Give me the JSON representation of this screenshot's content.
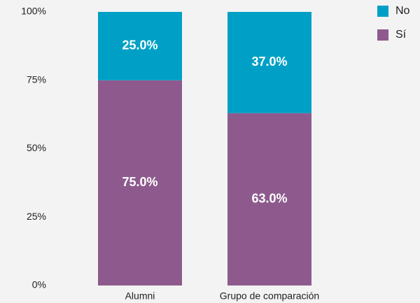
{
  "chart_data": {
    "type": "stacked-bar",
    "categories": [
      "Alumni",
      "Grupo de comparación"
    ],
    "series": [
      {
        "name": "No",
        "color": "#00a0c6",
        "values": [
          25,
          37
        ],
        "value_labels": [
          "25.0%",
          "37.0%"
        ]
      },
      {
        "name": "Sí",
        "color": "#8e5a8e",
        "values": [
          75,
          63
        ],
        "value_labels": [
          "75.0%",
          "63.0%"
        ]
      }
    ],
    "ylim": [
      0,
      100
    ],
    "yticks": [
      {
        "value": 0,
        "label": "0%"
      },
      {
        "value": 25,
        "label": "25%"
      },
      {
        "value": 50,
        "label": "50%"
      },
      {
        "value": 75,
        "label": "75%"
      },
      {
        "value": 100,
        "label": "100%"
      }
    ],
    "legend": "top-right"
  }
}
